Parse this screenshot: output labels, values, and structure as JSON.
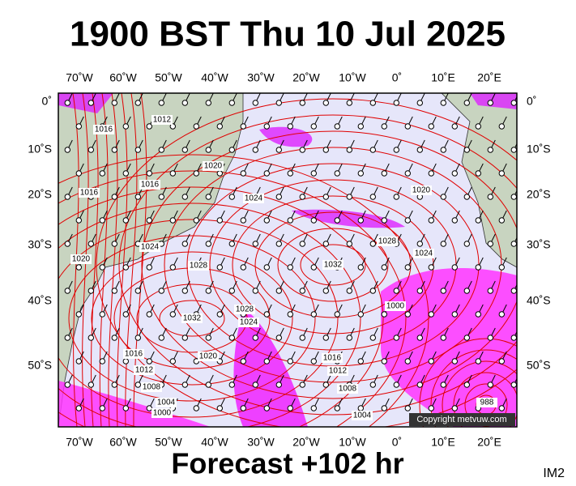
{
  "title": "1900 BST Thu 10 Jul 2025",
  "footer": "Forecast +102 hr",
  "corner_label": "IM2",
  "copyright": "Copyright metvuw.com",
  "longitude_labels": [
    "70˚W",
    "60˚W",
    "50˚W",
    "40˚W",
    "30˚W",
    "20˚W",
    "10˚W",
    "0˚",
    "10˚E",
    "20˚E"
  ],
  "latitude_labels": [
    "0˚",
    "10˚S",
    "20˚S",
    "30˚S",
    "40˚S",
    "50˚S"
  ],
  "pressure_labels": [
    "1016",
    "1012",
    "1020",
    "1016",
    "1016",
    "1024",
    "1020",
    "1028",
    "1024",
    "1024",
    "1020",
    "1028",
    "1032",
    "1032",
    "1028",
    "1024",
    "1000",
    "1016",
    "1020",
    "1012",
    "1016",
    "1012",
    "1008",
    "1008",
    "1004",
    "1000",
    "1004",
    "988"
  ]
}
